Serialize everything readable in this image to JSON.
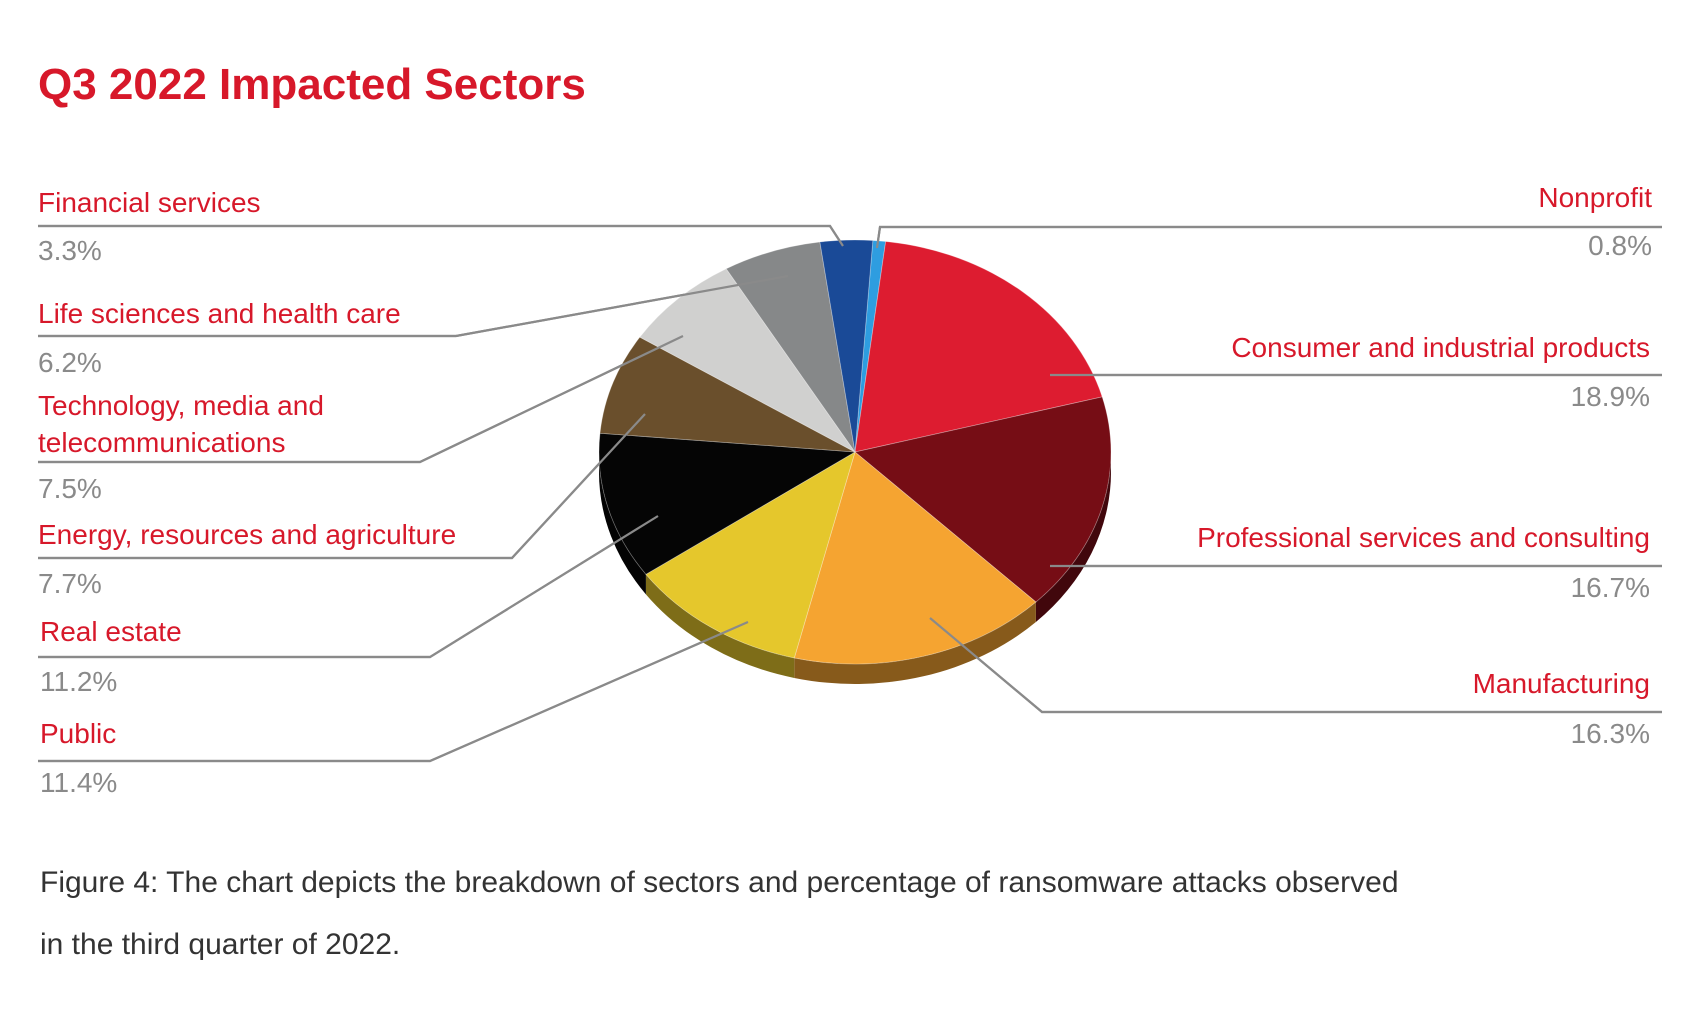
{
  "chart_data": {
    "type": "pie",
    "title": "Q3 2022 Impacted Sectors",
    "slices": [
      {
        "label": "Nonprofit",
        "value": 0.8,
        "display": "0.8%",
        "color": "#2e9de0"
      },
      {
        "label": "Consumer and industrial products",
        "value": 18.9,
        "display": "18.9%",
        "color": "#dd1c30"
      },
      {
        "label": "Professional services and consulting",
        "value": 16.7,
        "display": "16.7%",
        "color": "#760d15"
      },
      {
        "label": "Manufacturing",
        "value": 16.3,
        "display": "16.3%",
        "color": "#f5a431"
      },
      {
        "label": "Public",
        "value": 11.4,
        "display": "11.4%",
        "color": "#e5c72c"
      },
      {
        "label": "Real estate",
        "value": 11.2,
        "display": "11.2%",
        "color": "#050505"
      },
      {
        "label": "Energy, resources and agriculture",
        "value": 7.7,
        "display": "7.7%",
        "color": "#6a4f2c"
      },
      {
        "label": "Technology, media and telecommunications",
        "value": 7.5,
        "display": "7.5%",
        "color": "#d0d0cf"
      },
      {
        "label": "Life sciences and health care",
        "value": 6.2,
        "display": "6.2%",
        "color": "#868889"
      },
      {
        "label": "Financial services",
        "value": 3.3,
        "display": "3.3%",
        "color": "#1a4a97"
      }
    ],
    "label_lines": [
      "Technology, media and",
      "telecommunications"
    ]
  },
  "caption": {
    "line1": "Figure 4: The chart depicts the breakdown of sectors and percentage of ransomware attacks observed",
    "line2": "in the third quarter of 2022."
  },
  "colors": {
    "title": "#d7182a",
    "label": "#d7182a",
    "value": "#8a8a8a",
    "leader": "#8a8a8a"
  }
}
